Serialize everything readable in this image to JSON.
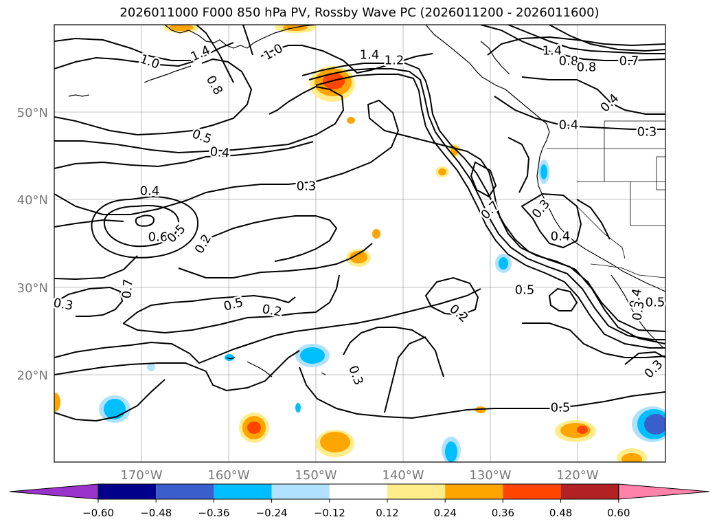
{
  "title": "2026011000 F000 850 hPa PV, Rossby Wave PC (2026011200 - 2026011600)",
  "lat_labels": [
    "50°N",
    "40°N",
    "30°N",
    "20°N"
  ],
  "lon_labels": [
    "170°W",
    "160°W",
    "150°W",
    "140°W",
    "130°W",
    "120°W"
  ],
  "contour_labels": [
    "1.0",
    "1.4",
    "1.0",
    "1.4",
    "1.2",
    "1.4",
    "0.8",
    "0.8",
    "0.7",
    "0.8",
    "0.5",
    "0.4",
    "0.4",
    "0.3",
    "0.4",
    "0.6",
    "0.5",
    "0.2",
    "0.7",
    "0.3",
    "0.4",
    "0.3",
    "0.4",
    "0.5",
    "0.2",
    "0.3",
    "0.7",
    "0.5",
    "0.3",
    "0.2",
    "0.5",
    "0.3",
    "0.4",
    "0.3",
    "0.5"
  ],
  "colorbar": {
    "ticks": [
      "−0.60",
      "−0.48",
      "−0.36",
      "−0.24",
      "−0.12",
      "0.12",
      "0.24",
      "0.36",
      "0.48",
      "0.60"
    ],
    "colors": [
      "#9933cc",
      "#00008b",
      "#3a5fcd",
      "#00bfff",
      "#b0e2ff",
      "#ffffff",
      "#ffec8b",
      "#ffa500",
      "#ff4500",
      "#b22222",
      "#ff82ab"
    ]
  },
  "chart_data": {
    "type": "map",
    "title": "2026011000 F000 850 hPa PV, Rossby Wave PC (2026011200 - 2026011600)",
    "fields": [
      "850 hPa PV (contours)",
      "Rossby Wave PC (shaded)"
    ],
    "lon_range": [
      -180,
      -110
    ],
    "lat_range": [
      10,
      60
    ],
    "contour_levels": [
      0.2,
      0.3,
      0.4,
      0.5,
      0.6,
      0.7,
      0.8,
      1.0,
      1.2,
      1.4
    ],
    "shading_levels": [
      -0.6,
      -0.48,
      -0.36,
      -0.24,
      -0.12,
      0.12,
      0.24,
      0.36,
      0.48,
      0.6
    ]
  }
}
